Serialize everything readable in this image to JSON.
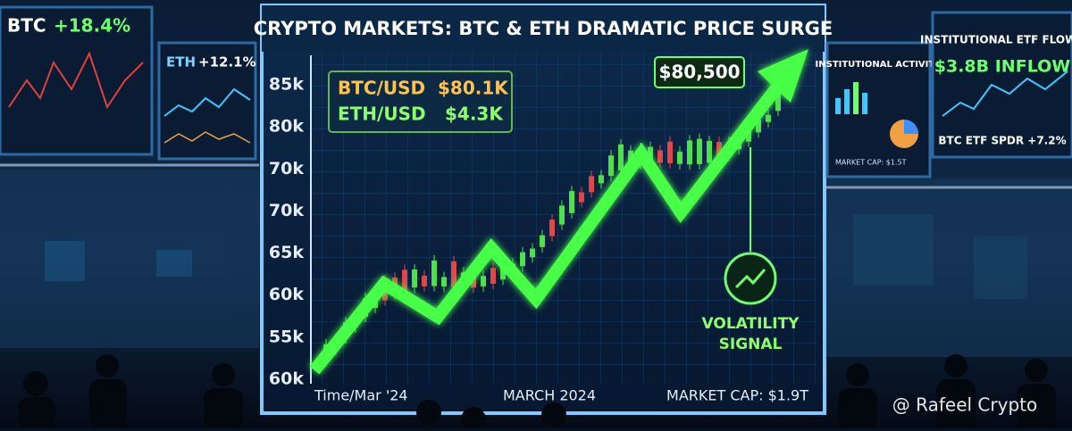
{
  "left_screens": [
    {
      "label": "BTC",
      "change": "+18.4%"
    },
    {
      "label": "ETH",
      "change": "+12.1%"
    }
  ],
  "main_screen": {
    "title": "CRYPTO MARKETS: BTC & ETH DRAMATIC PRICE SURGE",
    "prices": [
      {
        "pair": "BTC/USD",
        "price": "$80.1K"
      },
      {
        "pair": "ETH/USD",
        "price": "$4.3K"
      }
    ],
    "callout": "$80,500",
    "axis_labels": [
      "85k",
      "80k",
      "70k",
      "70k",
      "65k",
      "60k",
      "55k",
      "60k"
    ],
    "footer": [
      "Time/Mar '24",
      "MARCH 2024",
      "MARKET CAP: $1.9T"
    ],
    "signal": [
      "VOLATILITY",
      "SIGNAL"
    ]
  },
  "right_screens": {
    "activity_title": "INSTITUTIONAL ACTIVITY",
    "activity_note": "MARKET CAP: $1.5T",
    "etf_title": "INSTITUTIONAL ETF FLOWS",
    "etf_inflow": "$3.8B INFLOW",
    "etf_fund": "BTC ETF SPDR +7.2%"
  },
  "watermark": "@ Rafeel Crypto"
}
